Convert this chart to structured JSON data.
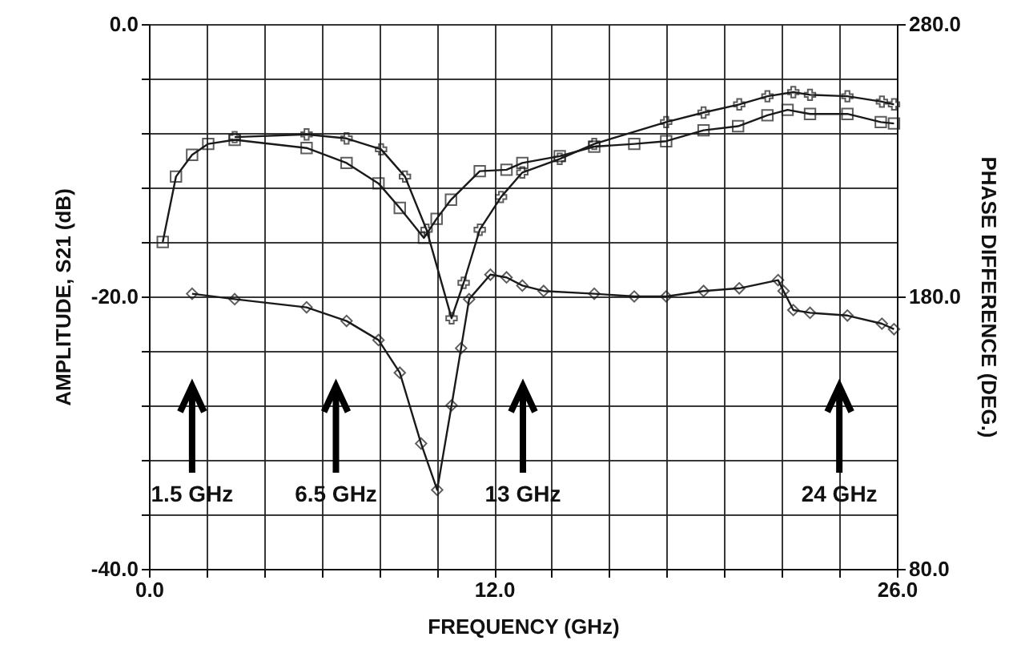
{
  "chart_data": {
    "type": "line",
    "xlabel": "FREQUENCY (GHz)",
    "ylabel": "AMPLITUDE, S21 (dB)",
    "y2label": "PHASE DIFFERENCE (DEG.)",
    "xlim": [
      0,
      26
    ],
    "ylim": [
      -40,
      0
    ],
    "y2lim": [
      80,
      280
    ],
    "xticks": [
      {
        "value": 0,
        "label": "0.0"
      },
      {
        "value": 2,
        "label": null
      },
      {
        "value": 4,
        "label": null
      },
      {
        "value": 6,
        "label": null
      },
      {
        "value": 8,
        "label": null
      },
      {
        "value": 10,
        "label": null
      },
      {
        "value": 12,
        "label": "12.0"
      },
      {
        "value": 14,
        "label": null
      },
      {
        "value": 16,
        "label": null
      },
      {
        "value": 18,
        "label": null
      },
      {
        "value": 20,
        "label": null
      },
      {
        "value": 22,
        "label": null
      },
      {
        "value": 24,
        "label": null
      },
      {
        "value": 26,
        "label": "26.0"
      }
    ],
    "yticks": [
      {
        "value": -40,
        "label": "-40.0"
      },
      {
        "value": -36,
        "label": null
      },
      {
        "value": -32,
        "label": null
      },
      {
        "value": -28,
        "label": null
      },
      {
        "value": -24,
        "label": null
      },
      {
        "value": -20,
        "label": "-20.0"
      },
      {
        "value": -16,
        "label": null
      },
      {
        "value": -12,
        "label": null
      },
      {
        "value": -8,
        "label": null
      },
      {
        "value": -4,
        "label": null
      },
      {
        "value": 0,
        "label": "0.0"
      }
    ],
    "y2ticks": [
      {
        "value": 80,
        "label": "80.0"
      },
      {
        "value": 180,
        "label": "180.0"
      },
      {
        "value": 280,
        "label": "280.0"
      }
    ],
    "grid": true,
    "line_style": "solid",
    "series": [
      {
        "color": "#1a1a1a",
        "marker": "square",
        "x": [
          0.48,
          0.94,
          1.5,
          2.06,
          2.98,
          5.48,
          6.87,
          7.98,
          8.72,
          9.56,
          10.0,
          10.5,
          11.5,
          12.43,
          12.98,
          14.28,
          15.48,
          16.87,
          17.98,
          19.28,
          20.48,
          21.5,
          22.2,
          22.98,
          24.28,
          25.44,
          25.9
        ],
        "values": [
          -16.0,
          -11.2,
          -9.6,
          -8.8,
          -8.5,
          -9.1,
          -10.2,
          -11.7,
          -13.5,
          -15.7,
          -14.3,
          -12.9,
          -10.8,
          -10.7,
          -10.2,
          -9.7,
          -9.0,
          -8.8,
          -8.6,
          -7.8,
          -7.5,
          -6.7,
          -6.3,
          -6.6,
          -6.6,
          -7.2,
          -7.3
        ]
      },
      {
        "color": "#1a1a1a",
        "marker": "cross",
        "x": [
          2.98,
          5.48,
          6.87,
          8.07,
          8.9,
          9.65,
          10.52,
          10.94,
          11.5,
          12.24,
          12.98,
          14.28,
          15.48,
          17.98,
          19.28,
          20.52,
          21.5,
          22.4,
          22.98,
          24.28,
          25.48,
          25.9
        ],
        "values": [
          -8.3,
          -8.1,
          -8.4,
          -9.2,
          -11.2,
          -15.1,
          -21.6,
          -19.0,
          -15.1,
          -12.7,
          -10.9,
          -9.9,
          -8.8,
          -7.2,
          -6.5,
          -5.9,
          -5.3,
          -5.0,
          -5.2,
          -5.3,
          -5.7,
          -5.9
        ]
      },
      {
        "color": "#1a1a1a",
        "marker": "diamond",
        "axis": "y2",
        "x": [
          1.5,
          2.98,
          5.48,
          6.87,
          7.98,
          8.72,
          9.46,
          10.02,
          10.52,
          10.85,
          11.13,
          11.87,
          12.43,
          12.98,
          13.72,
          15.48,
          16.87,
          17.98,
          19.28,
          20.52,
          21.87,
          22.06,
          22.4,
          22.98,
          24.28,
          25.48,
          25.9
        ],
        "values": [
          181,
          179,
          176,
          171,
          164,
          152,
          126,
          109,
          140,
          161,
          179,
          188,
          187,
          184,
          182,
          181,
          180,
          180,
          182,
          183,
          186,
          182,
          175,
          174,
          173,
          170,
          168
        ]
      }
    ],
    "ref_lines": [
      {
        "axis": "x",
        "value": 1.5,
        "label": "1.5 GHz",
        "color": "#000000"
      },
      {
        "axis": "x",
        "value": 6.5,
        "label": "6.5 GHz",
        "color": "#000000"
      },
      {
        "axis": "x",
        "value": 13,
        "label": "13 GHz",
        "color": "#000000"
      },
      {
        "axis": "x",
        "value": 24,
        "label": "24 GHz",
        "color": "#000000"
      }
    ]
  }
}
